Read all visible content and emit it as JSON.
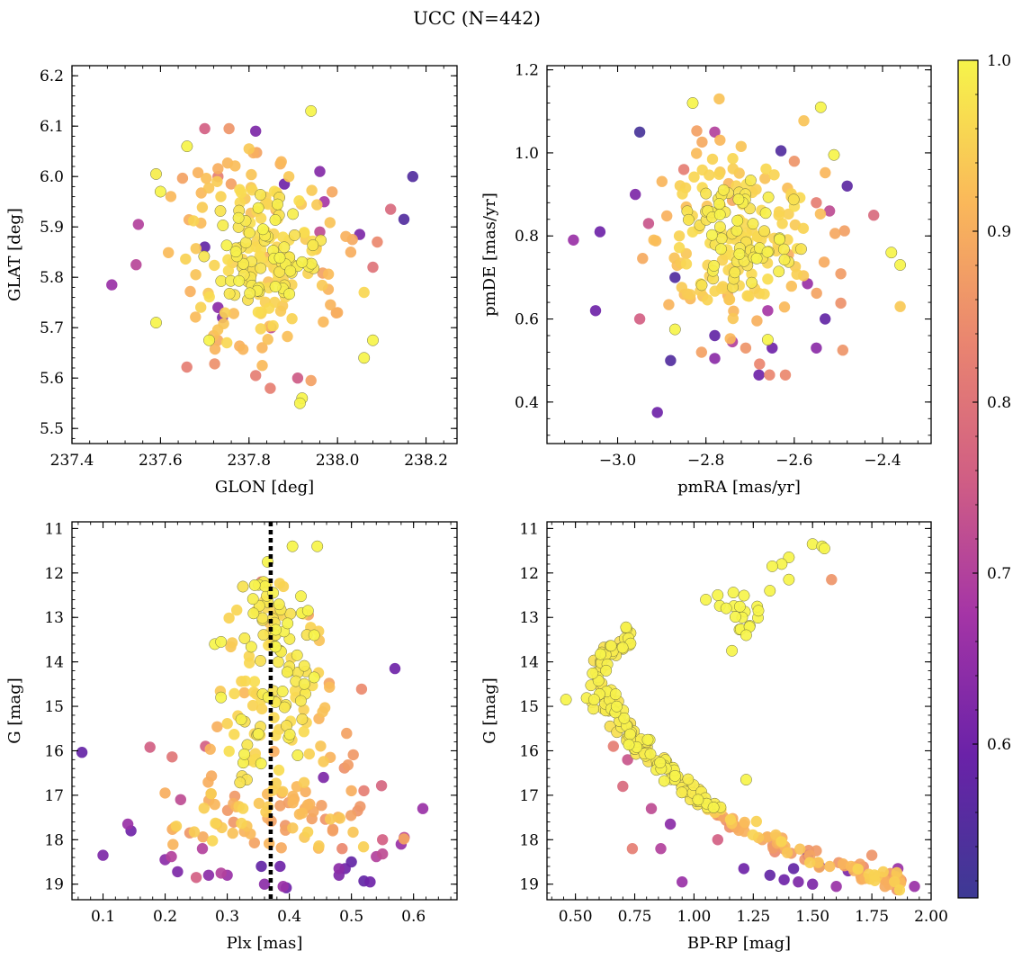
{
  "figure_title": "UCC (N=442)",
  "colorbar": {
    "ticks": [
      "0.6",
      "0.7",
      "0.8",
      "0.9",
      "1.0"
    ],
    "range": [
      0.51,
      1.0
    ],
    "colormap": "plasma"
  },
  "chart_data": [
    {
      "id": "glon-glat",
      "type": "scatter",
      "xlabel": "GLON [deg]",
      "ylabel": "GLAT [deg]",
      "xlim": [
        237.4,
        238.27
      ],
      "ylim": [
        5.47,
        6.22
      ],
      "xticks": [
        237.4,
        237.6,
        237.8,
        238.0,
        238.2
      ],
      "xtick_labels": [
        "237.4",
        "237.6",
        "237.8",
        "238.0",
        "238.2"
      ],
      "yticks": [
        5.5,
        5.6,
        5.7,
        5.8,
        5.9,
        6.0,
        6.1,
        6.2
      ],
      "ytick_labels": [
        "5.5",
        "5.6",
        "5.7",
        "5.8",
        "5.9",
        "6.0",
        "6.1",
        "6.2"
      ],
      "yinvert": false,
      "cluster": {
        "center": [
          237.83,
          5.85
        ],
        "spread": [
          0.09,
          0.08
        ]
      },
      "points": [
        {
          "x": 237.49,
          "y": 5.785,
          "p": 0.66
        },
        {
          "x": 237.55,
          "y": 5.905,
          "p": 0.7
        },
        {
          "x": 237.545,
          "y": 5.825,
          "p": 0.71
        },
        {
          "x": 237.59,
          "y": 5.71,
          "p": 1.0
        },
        {
          "x": 237.59,
          "y": 6.005,
          "p": 0.99
        },
        {
          "x": 237.6,
          "y": 5.97,
          "p": 1.0
        },
        {
          "x": 237.66,
          "y": 6.06,
          "p": 1.0
        },
        {
          "x": 237.7,
          "y": 6.095,
          "p": 0.76
        },
        {
          "x": 237.755,
          "y": 6.095,
          "p": 0.86
        },
        {
          "x": 237.815,
          "y": 6.09,
          "p": 0.62
        },
        {
          "x": 237.94,
          "y": 6.13,
          "p": 1.0
        },
        {
          "x": 238.17,
          "y": 6.0,
          "p": 0.55
        },
        {
          "x": 238.15,
          "y": 5.915,
          "p": 0.55
        },
        {
          "x": 238.12,
          "y": 5.935,
          "p": 0.78
        },
        {
          "x": 238.09,
          "y": 5.87,
          "p": 0.84
        },
        {
          "x": 238.08,
          "y": 5.82,
          "p": 0.8
        },
        {
          "x": 238.06,
          "y": 5.77,
          "p": 0.96
        },
        {
          "x": 238.05,
          "y": 5.885,
          "p": 0.62
        },
        {
          "x": 238.08,
          "y": 5.675,
          "p": 1.0
        },
        {
          "x": 238.06,
          "y": 5.64,
          "p": 1.0
        },
        {
          "x": 237.96,
          "y": 6.01,
          "p": 0.63
        },
        {
          "x": 237.91,
          "y": 5.6,
          "p": 0.75
        },
        {
          "x": 237.94,
          "y": 5.595,
          "p": 0.88
        },
        {
          "x": 237.92,
          "y": 5.56,
          "p": 1.0
        },
        {
          "x": 237.915,
          "y": 5.55,
          "p": 1.0
        },
        {
          "x": 237.83,
          "y": 5.625,
          "p": 0.92
        },
        {
          "x": 237.815,
          "y": 5.605,
          "p": 0.82
        },
        {
          "x": 237.73,
          "y": 5.74,
          "p": 0.64
        },
        {
          "x": 237.74,
          "y": 5.72,
          "p": 0.62
        },
        {
          "x": 237.7,
          "y": 5.86,
          "p": 0.58
        },
        {
          "x": 237.71,
          "y": 5.675,
          "p": 1.0
        },
        {
          "x": 237.75,
          "y": 5.67,
          "p": 0.96
        },
        {
          "x": 237.73,
          "y": 6.0,
          "p": 0.82
        },
        {
          "x": 237.8,
          "y": 6.055,
          "p": 0.94
        },
        {
          "x": 237.88,
          "y": 5.985,
          "p": 0.6
        },
        {
          "x": 237.85,
          "y": 5.7,
          "p": 0.72
        },
        {
          "x": 238.0,
          "y": 5.73,
          "p": 0.9
        },
        {
          "x": 238.03,
          "y": 5.85,
          "p": 0.9
        },
        {
          "x": 237.97,
          "y": 5.95,
          "p": 0.68
        },
        {
          "x": 237.96,
          "y": 5.89,
          "p": 0.72
        }
      ]
    },
    {
      "id": "pmra-pmde",
      "type": "scatter",
      "xlabel": "pmRA [mas/yr]",
      "ylabel": "pmDE [mas/yr]",
      "xlim": [
        -3.16,
        -2.29
      ],
      "ylim": [
        0.3,
        1.21
      ],
      "xticks": [
        -3.0,
        -2.8,
        -2.6,
        -2.4
      ],
      "xtick_labels": [
        "−3.0",
        "−2.8",
        "−2.6",
        "−2.4"
      ],
      "yticks": [
        0.4,
        0.6,
        0.8,
        1.0,
        1.2
      ],
      "ytick_labels": [
        "0.4",
        "0.6",
        "0.8",
        "1.0",
        "1.2"
      ],
      "yinvert": false,
      "cluster": {
        "center": [
          -2.72,
          0.8
        ],
        "spread": [
          0.09,
          0.1
        ]
      },
      "points": [
        {
          "x": -3.1,
          "y": 0.79,
          "p": 0.66
        },
        {
          "x": -3.05,
          "y": 0.62,
          "p": 0.6
        },
        {
          "x": -3.04,
          "y": 0.81,
          "p": 0.6
        },
        {
          "x": -2.95,
          "y": 1.05,
          "p": 0.53
        },
        {
          "x": -2.95,
          "y": 0.6,
          "p": 0.76
        },
        {
          "x": -2.91,
          "y": 0.375,
          "p": 0.6
        },
        {
          "x": -2.88,
          "y": 0.5,
          "p": 0.55
        },
        {
          "x": -2.87,
          "y": 0.575,
          "p": 1.0
        },
        {
          "x": -2.83,
          "y": 1.12,
          "p": 1.0
        },
        {
          "x": -2.77,
          "y": 1.13,
          "p": 0.93
        },
        {
          "x": -2.78,
          "y": 1.05,
          "p": 0.7
        },
        {
          "x": -2.78,
          "y": 0.505,
          "p": 0.64
        },
        {
          "x": -2.81,
          "y": 0.52,
          "p": 0.88
        },
        {
          "x": -2.74,
          "y": 0.545,
          "p": 0.7
        },
        {
          "x": -2.68,
          "y": 0.465,
          "p": 0.6
        },
        {
          "x": -2.62,
          "y": 0.465,
          "p": 0.84
        },
        {
          "x": -2.63,
          "y": 1.005,
          "p": 0.55
        },
        {
          "x": -2.54,
          "y": 1.11,
          "p": 1.0
        },
        {
          "x": -2.51,
          "y": 0.995,
          "p": 1.0
        },
        {
          "x": -2.48,
          "y": 0.92,
          "p": 0.57
        },
        {
          "x": -2.42,
          "y": 0.85,
          "p": 0.78
        },
        {
          "x": -2.38,
          "y": 0.76,
          "p": 1.0
        },
        {
          "x": -2.36,
          "y": 0.73,
          "p": 1.0
        },
        {
          "x": -2.36,
          "y": 0.63,
          "p": 0.94
        },
        {
          "x": -2.49,
          "y": 0.525,
          "p": 0.86
        },
        {
          "x": -2.55,
          "y": 0.53,
          "p": 0.64
        },
        {
          "x": -2.53,
          "y": 0.6,
          "p": 0.58
        },
        {
          "x": -2.57,
          "y": 0.685,
          "p": 0.66
        },
        {
          "x": -2.66,
          "y": 0.55,
          "p": 1.0
        },
        {
          "x": -2.71,
          "y": 0.53,
          "p": 0.86
        },
        {
          "x": -2.65,
          "y": 0.53,
          "p": 0.6
        },
        {
          "x": -2.78,
          "y": 0.56,
          "p": 0.58
        },
        {
          "x": -2.96,
          "y": 0.9,
          "p": 0.62
        },
        {
          "x": -2.93,
          "y": 0.83,
          "p": 0.74
        },
        {
          "x": -2.85,
          "y": 0.96,
          "p": 0.82
        },
        {
          "x": -2.6,
          "y": 0.98,
          "p": 0.86
        },
        {
          "x": -2.55,
          "y": 0.88,
          "p": 0.82
        },
        {
          "x": -2.52,
          "y": 0.86,
          "p": 0.72
        },
        {
          "x": -2.66,
          "y": 0.62,
          "p": 0.68
        },
        {
          "x": -2.87,
          "y": 0.7,
          "p": 0.55
        }
      ]
    },
    {
      "id": "plx-g",
      "type": "scatter",
      "xlabel": "Plx [mas]",
      "ylabel": "G [mag]",
      "xlim": [
        0.05,
        0.67
      ],
      "ylim": [
        10.85,
        19.35
      ],
      "xticks": [
        0.1,
        0.2,
        0.3,
        0.4,
        0.5,
        0.6
      ],
      "xtick_labels": [
        "0.1",
        "0.2",
        "0.3",
        "0.4",
        "0.5",
        "0.6"
      ],
      "yticks": [
        11,
        12,
        13,
        14,
        15,
        16,
        17,
        18,
        19
      ],
      "ytick_labels": [
        "11",
        "12",
        "13",
        "14",
        "15",
        "16",
        "17",
        "18",
        "19"
      ],
      "yinvert": true,
      "vline": 0.37,
      "cluster": {
        "center": [
          0.37,
          15.5
        ],
        "spread": [
          0.04,
          1.7
        ]
      },
      "points": [
        {
          "x": 0.1,
          "y": 18.35,
          "p": 0.62
        },
        {
          "x": 0.14,
          "y": 17.65,
          "p": 0.66
        },
        {
          "x": 0.145,
          "y": 17.8,
          "p": 0.6
        },
        {
          "x": 0.2,
          "y": 16.95,
          "p": 0.9
        },
        {
          "x": 0.2,
          "y": 18.45,
          "p": 0.64
        },
        {
          "x": 0.21,
          "y": 18.38,
          "p": 0.7
        },
        {
          "x": 0.22,
          "y": 18.72,
          "p": 0.62
        },
        {
          "x": 0.225,
          "y": 17.1,
          "p": 0.72
        },
        {
          "x": 0.25,
          "y": 18.85,
          "p": 0.76
        },
        {
          "x": 0.26,
          "y": 18.2,
          "p": 0.7
        },
        {
          "x": 0.265,
          "y": 15.9,
          "p": 0.76
        },
        {
          "x": 0.27,
          "y": 18.8,
          "p": 0.64
        },
        {
          "x": 0.29,
          "y": 18.75,
          "p": 0.7
        },
        {
          "x": 0.3,
          "y": 18.8,
          "p": 0.66
        },
        {
          "x": 0.28,
          "y": 13.6,
          "p": 1.0
        },
        {
          "x": 0.29,
          "y": 13.55,
          "p": 1.0
        },
        {
          "x": 0.29,
          "y": 14.8,
          "p": 1.0
        },
        {
          "x": 0.355,
          "y": 12.2,
          "p": 0.82
        },
        {
          "x": 0.365,
          "y": 11.75,
          "p": 1.0
        },
        {
          "x": 0.39,
          "y": 19.05,
          "p": 0.66
        },
        {
          "x": 0.395,
          "y": 19.08,
          "p": 0.6
        },
        {
          "x": 0.385,
          "y": 18.6,
          "p": 0.6
        },
        {
          "x": 0.36,
          "y": 19.0,
          "p": 0.64
        },
        {
          "x": 0.355,
          "y": 18.6,
          "p": 0.58
        },
        {
          "x": 0.405,
          "y": 11.4,
          "p": 1.0
        },
        {
          "x": 0.445,
          "y": 11.4,
          "p": 1.0
        },
        {
          "x": 0.42,
          "y": 12.9,
          "p": 1.0
        },
        {
          "x": 0.43,
          "y": 12.85,
          "p": 1.0
        },
        {
          "x": 0.44,
          "y": 13.4,
          "p": 1.0
        },
        {
          "x": 0.44,
          "y": 14.35,
          "p": 1.0
        },
        {
          "x": 0.57,
          "y": 14.15,
          "p": 0.6
        },
        {
          "x": 0.52,
          "y": 16.9,
          "p": 0.82
        },
        {
          "x": 0.5,
          "y": 16.9,
          "p": 0.9
        },
        {
          "x": 0.51,
          "y": 17.35,
          "p": 0.86
        },
        {
          "x": 0.48,
          "y": 18.65,
          "p": 0.64
        },
        {
          "x": 0.49,
          "y": 18.65,
          "p": 0.6
        },
        {
          "x": 0.48,
          "y": 18.8,
          "p": 0.62
        },
        {
          "x": 0.5,
          "y": 18.5,
          "p": 0.58
        },
        {
          "x": 0.52,
          "y": 18.93,
          "p": 0.58
        },
        {
          "x": 0.53,
          "y": 18.95,
          "p": 0.6
        },
        {
          "x": 0.54,
          "y": 18.38,
          "p": 0.7
        },
        {
          "x": 0.55,
          "y": 18.32,
          "p": 0.72
        },
        {
          "x": 0.55,
          "y": 18.0,
          "p": 0.76
        },
        {
          "x": 0.58,
          "y": 18.1,
          "p": 0.66
        },
        {
          "x": 0.585,
          "y": 17.95,
          "p": 0.72
        },
        {
          "x": 0.615,
          "y": 17.3,
          "p": 0.66
        },
        {
          "x": 0.485,
          "y": 18.2,
          "p": 0.84
        },
        {
          "x": 0.47,
          "y": 17.8,
          "p": 0.88
        },
        {
          "x": 0.455,
          "y": 16.6,
          "p": 0.62
        }
      ]
    },
    {
      "id": "bprp-g",
      "type": "scatter",
      "xlabel": "BP-RP [mag]",
      "ylabel": "G [mag]",
      "xlim": [
        0.38,
        2.0
      ],
      "ylim": [
        10.85,
        19.35
      ],
      "xticks": [
        0.5,
        0.75,
        1.0,
        1.25,
        1.5,
        1.75,
        2.0
      ],
      "xtick_labels": [
        "0.50",
        "0.75",
        "1.00",
        "1.25",
        "1.50",
        "1.75",
        "2.00"
      ],
      "yticks": [
        11,
        12,
        13,
        14,
        15,
        16,
        17,
        18,
        19
      ],
      "ytick_labels": [
        "11",
        "12",
        "13",
        "14",
        "15",
        "16",
        "17",
        "18",
        "19"
      ],
      "yinvert": true,
      "isochrone": [
        [
          0.74,
          13.3
        ],
        [
          0.66,
          13.7
        ],
        [
          0.6,
          14.05
        ],
        [
          0.6,
          14.6
        ],
        [
          0.65,
          15.0
        ],
        [
          0.72,
          15.5
        ],
        [
          0.8,
          16.0
        ],
        [
          0.9,
          16.55
        ],
        [
          1.0,
          17.0
        ],
        [
          1.12,
          17.45
        ],
        [
          1.25,
          17.85
        ],
        [
          1.4,
          18.2
        ],
        [
          1.55,
          18.5
        ],
        [
          1.72,
          18.75
        ],
        [
          1.9,
          19.0
        ]
      ],
      "red_clump": {
        "center": [
          1.2,
          12.9
        ],
        "spread": [
          0.04,
          0.25
        ]
      },
      "points": [
        {
          "x": 0.46,
          "y": 14.85,
          "p": 1.0
        },
        {
          "x": 1.5,
          "y": 11.35,
          "p": 1.0
        },
        {
          "x": 1.54,
          "y": 11.4,
          "p": 1.0
        },
        {
          "x": 1.55,
          "y": 11.45,
          "p": 1.0
        },
        {
          "x": 1.58,
          "y": 12.15,
          "p": 0.86
        },
        {
          "x": 1.4,
          "y": 11.65,
          "p": 1.0
        },
        {
          "x": 1.37,
          "y": 11.8,
          "p": 1.0
        },
        {
          "x": 1.33,
          "y": 11.85,
          "p": 1.0
        },
        {
          "x": 1.4,
          "y": 12.15,
          "p": 1.0
        },
        {
          "x": 1.32,
          "y": 12.4,
          "p": 1.0
        },
        {
          "x": 1.05,
          "y": 12.6,
          "p": 1.0
        },
        {
          "x": 1.1,
          "y": 12.5,
          "p": 1.0
        },
        {
          "x": 1.22,
          "y": 13.4,
          "p": 1.0
        },
        {
          "x": 1.16,
          "y": 13.75,
          "p": 1.0
        },
        {
          "x": 1.22,
          "y": 16.65,
          "p": 1.0
        },
        {
          "x": 0.95,
          "y": 18.95,
          "p": 0.66
        },
        {
          "x": 1.21,
          "y": 18.65,
          "p": 0.6
        },
        {
          "x": 1.32,
          "y": 18.8,
          "p": 0.58
        },
        {
          "x": 1.38,
          "y": 18.9,
          "p": 0.6
        },
        {
          "x": 1.42,
          "y": 18.65,
          "p": 0.58
        },
        {
          "x": 1.44,
          "y": 18.95,
          "p": 0.62
        },
        {
          "x": 1.48,
          "y": 18.35,
          "p": 0.6
        },
        {
          "x": 1.5,
          "y": 19.0,
          "p": 0.62
        },
        {
          "x": 1.53,
          "y": 18.6,
          "p": 0.6
        },
        {
          "x": 1.6,
          "y": 19.05,
          "p": 0.66
        },
        {
          "x": 1.65,
          "y": 18.7,
          "p": 0.62
        },
        {
          "x": 1.82,
          "y": 18.9,
          "p": 0.76
        },
        {
          "x": 1.86,
          "y": 18.65,
          "p": 0.66
        },
        {
          "x": 1.93,
          "y": 19.05,
          "p": 0.66
        },
        {
          "x": 0.74,
          "y": 18.2,
          "p": 0.82
        },
        {
          "x": 0.86,
          "y": 18.2,
          "p": 0.7
        },
        {
          "x": 0.7,
          "y": 16.8,
          "p": 0.78
        },
        {
          "x": 0.72,
          "y": 16.2,
          "p": 0.74
        },
        {
          "x": 0.66,
          "y": 15.9,
          "p": 0.82
        },
        {
          "x": 0.9,
          "y": 17.65,
          "p": 0.64
        },
        {
          "x": 0.82,
          "y": 17.3,
          "p": 0.72
        },
        {
          "x": 1.1,
          "y": 18.0,
          "p": 0.76
        },
        {
          "x": 1.75,
          "y": 18.35,
          "p": 0.86
        },
        {
          "x": 1.7,
          "y": 18.55,
          "p": 0.88
        }
      ]
    }
  ]
}
